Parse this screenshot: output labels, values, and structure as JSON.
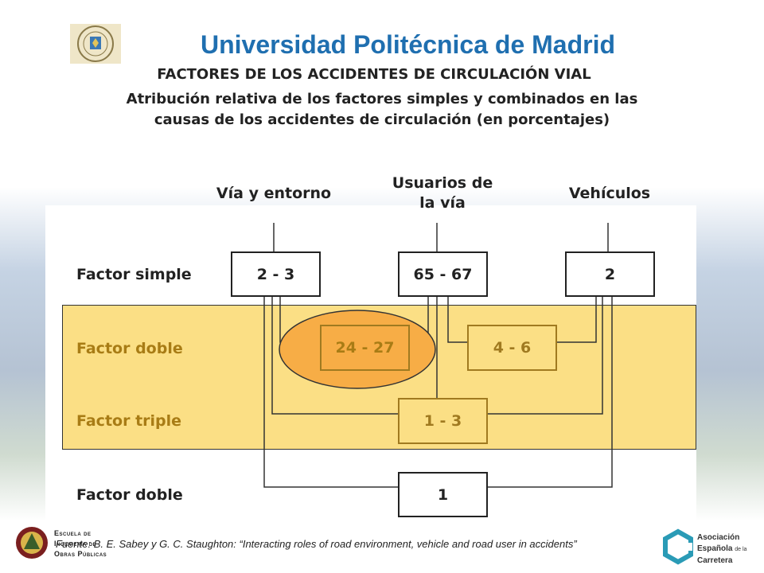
{
  "header": {
    "university": "Universidad Politécnica de Madrid",
    "title": "FACTORES DE LOS ACCIDENTES DE CIRCULACIÓN VIAL",
    "subtitle_line1": "Atribución relativa de los factores simples y combinados en las",
    "subtitle_line2": "causas de los accidentes de circulación (en porcentajes)"
  },
  "columns": {
    "via": "Vía y entorno",
    "usuarios_line1": "Usuarios de",
    "usuarios_line2": "la vía",
    "vehiculos": "Vehículos"
  },
  "rows": {
    "simple": "Factor simple",
    "doble": "Factor doble",
    "triple": "Factor triple",
    "doble2": "Factor doble"
  },
  "values": {
    "simple_via": "2 - 3",
    "simple_usuarios": "65 - 67",
    "simple_vehiculos": "2",
    "doble_via_usuarios": "24 - 27",
    "doble_usuarios_vehiculos": "4 - 6",
    "triple": "1 - 3",
    "doble_via_vehiculos": "1"
  },
  "footer": {
    "source": "Fuente: B. E. Sabey y G. C. Staughton:  “Interacting roles of road environment, vehicle and road user in accidents”",
    "school_line1": "Escuela de",
    "school_line2": "Ingeniería de",
    "school_line3": "Obras Públicas",
    "aec_line1": "Asociación",
    "aec_line2": "Española",
    "aec_line2_small": "de la",
    "aec_line3": "Carretera"
  },
  "icons": {
    "seal": "university-seal-icon",
    "school": "school-crest-icon",
    "aec": "aec-logo-icon"
  },
  "colors": {
    "title_blue": "#1f6fb0",
    "band_yellow": "#fbdf85",
    "highlight_orange": "#f7ad46"
  }
}
